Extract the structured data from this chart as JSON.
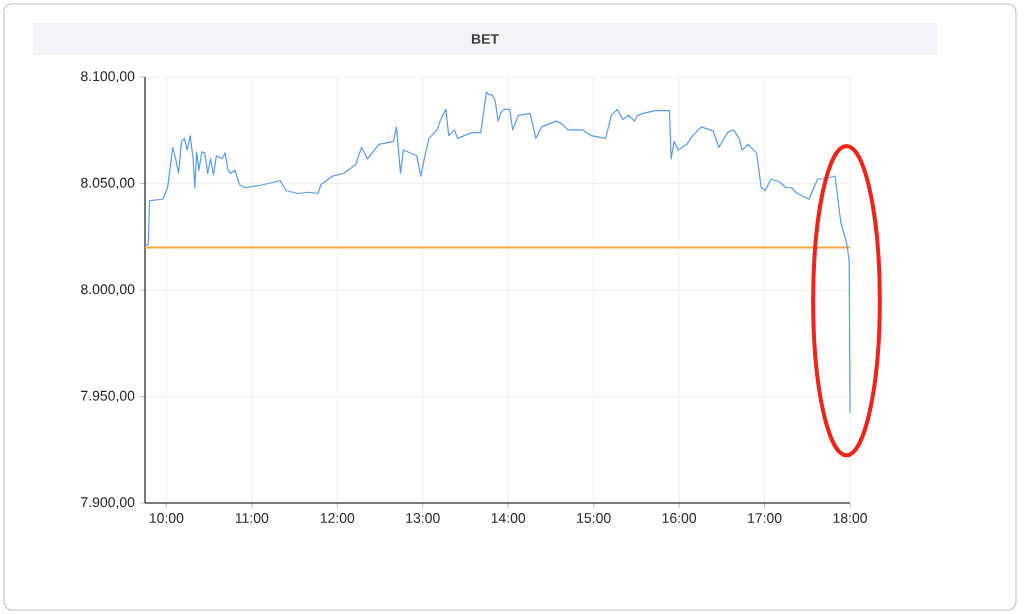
{
  "chart_data": {
    "type": "line",
    "title": "BET",
    "x": [
      9.75,
      9.789,
      9.803,
      9.959,
      10.014,
      10.075,
      10.109,
      10.143,
      10.177,
      10.211,
      10.245,
      10.279,
      10.313,
      10.333,
      10.354,
      10.381,
      10.415,
      10.449,
      10.483,
      10.517,
      10.551,
      10.585,
      10.653,
      10.687,
      10.721,
      10.755,
      10.802,
      10.857,
      10.925,
      11.128,
      11.332,
      11.4,
      11.536,
      11.672,
      11.774,
      11.808,
      11.944,
      12.08,
      12.216,
      12.284,
      12.352,
      12.488,
      12.658,
      12.692,
      12.74,
      12.774,
      12.93,
      12.978,
      13.018,
      13.073,
      13.168,
      13.202,
      13.27,
      13.304,
      13.372,
      13.406,
      13.576,
      13.678,
      13.746,
      13.78,
      13.814,
      13.848,
      13.882,
      13.916,
      13.95,
      14.018,
      14.052,
      14.12,
      14.256,
      14.324,
      14.392,
      14.561,
      14.629,
      14.697,
      14.867,
      14.969,
      15.139,
      15.207,
      15.275,
      15.343,
      15.411,
      15.479,
      15.513,
      15.581,
      15.717,
      15.887,
      15.907,
      15.941,
      15.989,
      16.091,
      16.159,
      16.261,
      16.397,
      16.465,
      16.567,
      16.635,
      16.703,
      16.737,
      16.805,
      16.907,
      16.961,
      17.009,
      17.077,
      17.179,
      17.247,
      17.315,
      17.383,
      17.519,
      17.621,
      17.689,
      17.825,
      17.892,
      17.96,
      17.99,
      18.0
    ],
    "series": [
      {
        "color": "#5b9be8",
        "values": [
          8020.8,
          8021.4,
          8042,
          8042.6,
          8048,
          8067,
          8061.6,
          8054.8,
          8069.8,
          8071.2,
          8065.7,
          8072.5,
          8061.6,
          8048,
          8064.9,
          8056.2,
          8064.9,
          8064.4,
          8054.8,
          8061.6,
          8054,
          8063,
          8061.6,
          8064.4,
          8056.2,
          8054.8,
          8056.2,
          8049.4,
          8048,
          8049.4,
          8051.3,
          8046.7,
          8045.3,
          8045.9,
          8045.3,
          8049.4,
          8053.5,
          8054.8,
          8058.9,
          8067,
          8061.6,
          8068.4,
          8069.8,
          8076.6,
          8054.8,
          8065.7,
          8063,
          8053.5,
          8061.6,
          8071.2,
          8075.2,
          8079.3,
          8084.8,
          8072.5,
          8075.2,
          8071.2,
          8073.9,
          8073.9,
          8092.9,
          8091.6,
          8091.6,
          8088.8,
          8079.3,
          8083.4,
          8084.8,
          8084.8,
          8075.2,
          8082,
          8082.9,
          8071.2,
          8076.6,
          8079.3,
          8078,
          8075.2,
          8075.2,
          8072.5,
          8071.2,
          8082,
          8084.8,
          8080.1,
          8082,
          8079.3,
          8082,
          8082.9,
          8084.2,
          8084.2,
          8061.6,
          8069.8,
          8065.7,
          8068.4,
          8072.5,
          8076.6,
          8074.7,
          8067,
          8073.9,
          8075.2,
          8071.2,
          8065.7,
          8068.4,
          8064.4,
          8048,
          8046.7,
          8052.1,
          8050.7,
          8048,
          8048,
          8045.3,
          8042.6,
          8052.1,
          8052.1,
          8053.5,
          8031.7,
          8022.2,
          8014,
          7942.4
        ]
      }
    ],
    "xlim": [
      9.75,
      18
    ],
    "xticks": [
      {
        "value": 10,
        "label": "10:00"
      },
      {
        "value": 11,
        "label": "11:00"
      },
      {
        "value": 12,
        "label": "12:00"
      },
      {
        "value": 13,
        "label": "13:00"
      },
      {
        "value": 14,
        "label": "14:00"
      },
      {
        "value": 15,
        "label": "15:00"
      },
      {
        "value": 16,
        "label": "16:00"
      },
      {
        "value": 17,
        "label": "17:00"
      },
      {
        "value": 18,
        "label": "18:00"
      }
    ],
    "ylim": [
      7900,
      8100
    ],
    "yticks": [
      {
        "value": 7900,
        "label": "7.900,00"
      },
      {
        "value": 7950,
        "label": "7.950,00"
      },
      {
        "value": 8000,
        "label": "8.000,00"
      },
      {
        "value": 8050,
        "label": "8.050,00"
      },
      {
        "value": 8100,
        "label": "8.100,00"
      }
    ],
    "ref_lines": [
      {
        "axis": "y",
        "value": 8020,
        "color": "#f5a742"
      }
    ],
    "grid": true,
    "marker": "none",
    "line_style": "solid"
  }
}
